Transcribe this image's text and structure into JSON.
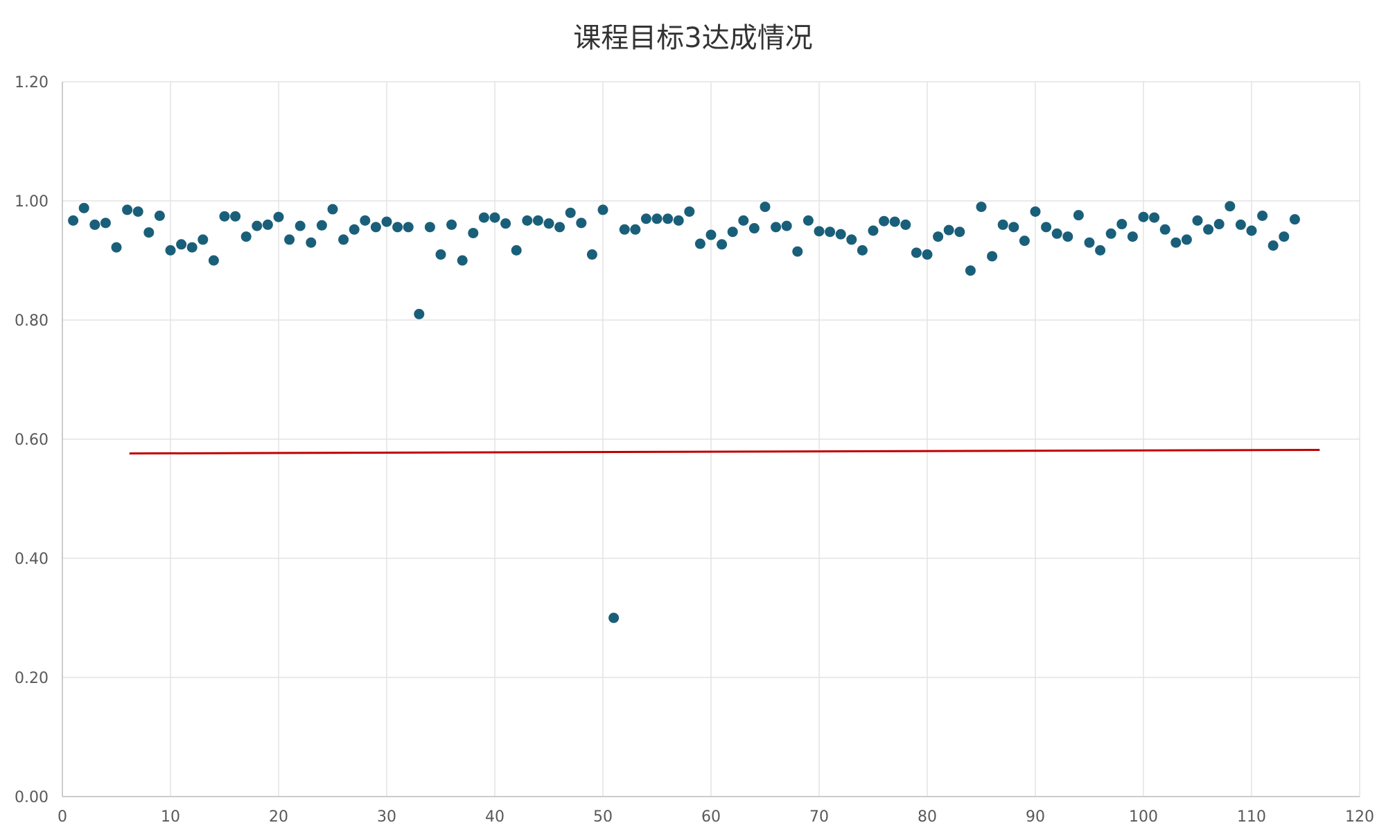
{
  "chart_data": {
    "type": "scatter",
    "title": "课程目标3达成情况",
    "xlabel": "",
    "ylabel": "",
    "xlim": [
      0,
      120
    ],
    "ylim": [
      0,
      1.2
    ],
    "x_ticks": [
      "0",
      "10",
      "20",
      "30",
      "40",
      "50",
      "60",
      "70",
      "80",
      "90",
      "100",
      "110",
      "120"
    ],
    "y_ticks": [
      "0.00",
      "0.20",
      "0.40",
      "0.60",
      "0.80",
      "1.00",
      "1.20"
    ],
    "grid": true,
    "colors": {
      "points": "#1a5f7a",
      "trendline": "#c00000",
      "grid": "#e3e3e3"
    },
    "series": [
      {
        "x": [
          1,
          2,
          3,
          4,
          5,
          6,
          7,
          8,
          9,
          10,
          11,
          12,
          13,
          14,
          15,
          16,
          17,
          18,
          19,
          20,
          21,
          22,
          23,
          24,
          25,
          26,
          27,
          28,
          29,
          30,
          31,
          32,
          33,
          34,
          35,
          36,
          37,
          38,
          39,
          40,
          41,
          42,
          43,
          44,
          45,
          46,
          47,
          48,
          49,
          50,
          51,
          52,
          53,
          54,
          55,
          56,
          57,
          58,
          59,
          60,
          61,
          62,
          63,
          64,
          65,
          66,
          67,
          68,
          69,
          70,
          71,
          72,
          73,
          74,
          75,
          76,
          77,
          78,
          79,
          80,
          81,
          82,
          83,
          84,
          85,
          86,
          87,
          88,
          89,
          90,
          91,
          92,
          93,
          94,
          95,
          96,
          97,
          98,
          99,
          100,
          101,
          102,
          103,
          104,
          105,
          106,
          107,
          108,
          109,
          110,
          111,
          112,
          113,
          114
        ],
        "y": [
          0.967,
          0.988,
          0.96,
          0.963,
          0.922,
          0.985,
          0.982,
          0.947,
          0.975,
          0.917,
          0.927,
          0.922,
          0.935,
          0.9,
          0.974,
          0.974,
          0.94,
          0.958,
          0.96,
          0.973,
          0.935,
          0.958,
          0.93,
          0.959,
          0.986,
          0.935,
          0.952,
          0.967,
          0.956,
          0.965,
          0.956,
          0.956,
          0.81,
          0.956,
          0.91,
          0.96,
          0.9,
          0.946,
          0.972,
          0.972,
          0.962,
          0.917,
          0.967,
          0.967,
          0.962,
          0.956,
          0.98,
          0.963,
          0.91,
          0.985,
          0.3,
          0.952,
          0.952,
          0.97,
          0.97,
          0.97,
          0.967,
          0.982,
          0.928,
          0.943,
          0.927,
          0.948,
          0.967,
          0.954,
          0.99,
          0.956,
          0.958,
          0.915,
          0.967,
          0.949,
          0.948,
          0.944,
          0.935,
          0.917,
          0.95,
          0.966,
          0.965,
          0.96,
          0.913,
          0.91,
          0.94,
          0.951,
          0.948,
          0.883,
          0.99,
          0.907,
          0.96,
          0.956,
          0.933,
          0.982,
          0.956,
          0.945,
          0.94,
          0.976,
          0.93,
          0.917,
          0.945,
          0.961,
          0.94,
          0.973,
          0.972,
          0.952,
          0.93,
          0.935,
          0.967,
          0.952,
          0.961,
          0.991,
          0.96,
          0.95,
          0.975,
          0.925,
          0.94,
          0.969
        ]
      }
    ],
    "trendline": {
      "x": [
        6.2,
        116.3
      ],
      "y": [
        0.576,
        0.582
      ]
    }
  }
}
